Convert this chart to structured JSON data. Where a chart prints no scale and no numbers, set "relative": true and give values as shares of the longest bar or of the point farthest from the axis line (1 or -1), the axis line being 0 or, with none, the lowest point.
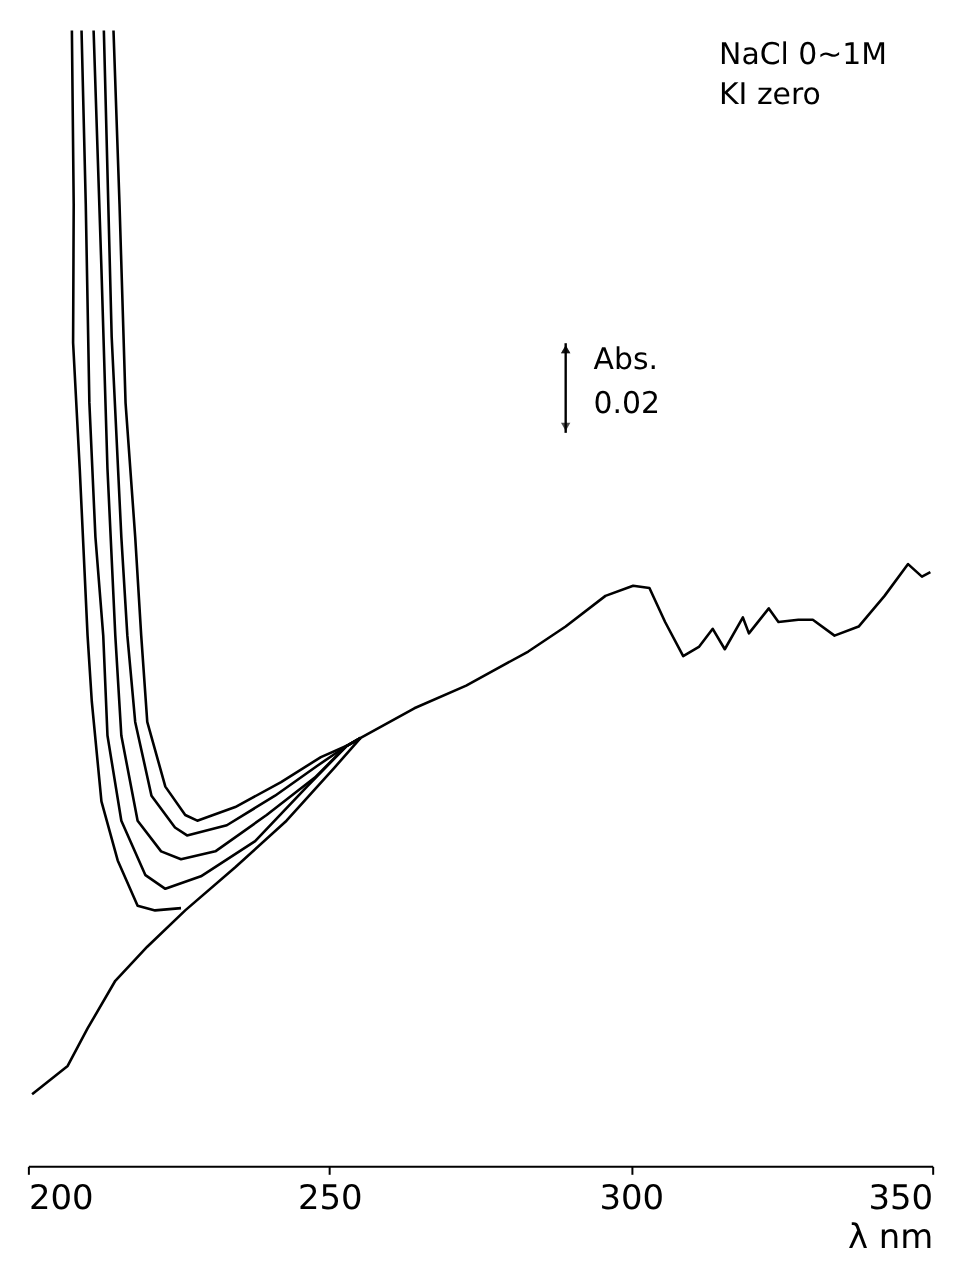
{
  "chart_data": {
    "type": "line",
    "relative": true,
    "xlabel": "λ nm",
    "xlim": [
      200,
      350
    ],
    "xticks": [
      200,
      250,
      300,
      350
    ],
    "grid": false,
    "marker": "none",
    "line_style": "solid",
    "annotations": [
      "NaCl 0~1M",
      "KI zero",
      "Abs.",
      "0.02"
    ],
    "series": [
      {
        "color": "#000000",
        "x": [
          200.7,
          206.6,
          209.9,
          214.5,
          219.8,
          226.1,
          234.4,
          242.9,
          250.9,
          255.2,
          264.1,
          272.7,
          283.0,
          289.2,
          295.8,
          300.4,
          303.1,
          305.7,
          308.7,
          311.3,
          313.6,
          315.6,
          318.6,
          319.6,
          322.9,
          324.5,
          327.8,
          330.2,
          333.8,
          337.8,
          342.1,
          346.0,
          348.3,
          349.7
        ],
        "values": [
          0.063,
          0.088,
          0.121,
          0.163,
          0.193,
          0.225,
          0.263,
          0.304,
          0.351,
          0.377,
          0.403,
          0.423,
          0.453,
          0.475,
          0.502,
          0.511,
          0.509,
          0.479,
          0.449,
          0.457,
          0.473,
          0.455,
          0.483,
          0.469,
          0.491,
          0.479,
          0.481,
          0.481,
          0.467,
          0.475,
          0.502,
          0.53,
          0.519,
          0.523
        ]
      },
      {
        "color": "#000000",
        "x": [
          207.3,
          207.6,
          207.5,
          208.6,
          209.9,
          210.6,
          212.2,
          214.9,
          218.2,
          221.1,
          225.4
        ],
        "values": [
          1.0,
          0.847,
          0.725,
          0.614,
          0.467,
          0.409,
          0.321,
          0.269,
          0.229,
          0.225,
          0.227
        ]
      },
      {
        "color": "#000000",
        "x": [
          208.9,
          209.6,
          210.2,
          211.2,
          212.5,
          213.2,
          215.5,
          219.5,
          222.8,
          228.7,
          237.7,
          246.3,
          252.9,
          255.2
        ],
        "values": [
          1.0,
          0.847,
          0.672,
          0.554,
          0.467,
          0.379,
          0.304,
          0.256,
          0.244,
          0.255,
          0.286,
          0.334,
          0.37,
          0.377
        ]
      },
      {
        "color": "#000000",
        "x": [
          210.9,
          212.2,
          213.2,
          214.5,
          215.5,
          218.2,
          222.1,
          225.4,
          231.1,
          239.6,
          247.6,
          252.9,
          255.2
        ],
        "values": [
          1.0,
          0.79,
          0.614,
          0.467,
          0.379,
          0.304,
          0.277,
          0.27,
          0.277,
          0.309,
          0.342,
          0.37,
          0.377
        ]
      },
      {
        "color": "#000000",
        "x": [
          212.6,
          213.9,
          215.5,
          216.5,
          217.8,
          220.5,
          224.4,
          226.4,
          233.0,
          241.0,
          247.9,
          252.9,
          255.2
        ],
        "values": [
          1.0,
          0.73,
          0.554,
          0.467,
          0.391,
          0.326,
          0.298,
          0.291,
          0.3,
          0.326,
          0.352,
          0.37,
          0.377
        ]
      },
      {
        "color": "#000000",
        "x": [
          214.2,
          215.2,
          216.2,
          217.8,
          218.8,
          219.8,
          222.8,
          226.1,
          228.1,
          234.4,
          242.0,
          248.6,
          252.9,
          255.2
        ],
        "values": [
          1.0,
          0.847,
          0.672,
          0.554,
          0.467,
          0.391,
          0.334,
          0.309,
          0.304,
          0.316,
          0.338,
          0.36,
          0.37,
          0.377
        ]
      }
    ]
  }
}
